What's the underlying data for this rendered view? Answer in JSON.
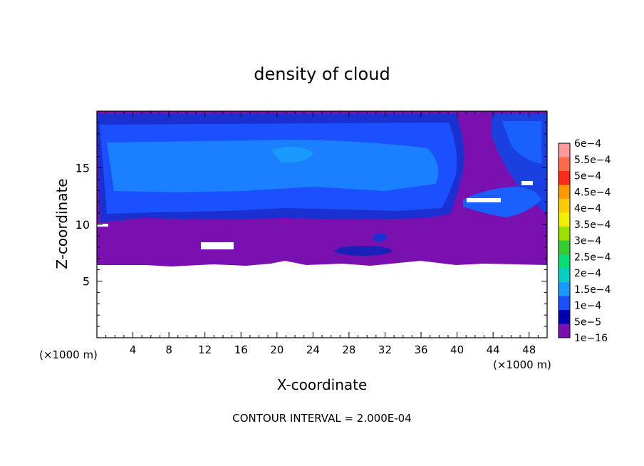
{
  "chart_data": {
    "type": "heatmap",
    "title": "density of cloud",
    "xlabel": "X-coordinate",
    "ylabel": "Z-coordinate",
    "x_unit_left": "(×1000 m)",
    "x_unit_right": "(×1000 m)",
    "xlim": [
      0,
      50
    ],
    "ylim": [
      0,
      20
    ],
    "x_ticks": [
      "4",
      "8",
      "12",
      "16",
      "20",
      "24",
      "28",
      "32",
      "36",
      "40",
      "44",
      "48"
    ],
    "x_tick_values": [
      4,
      8,
      12,
      16,
      20,
      24,
      28,
      32,
      36,
      40,
      44,
      48
    ],
    "y_ticks": [
      "5",
      "10",
      "15"
    ],
    "y_tick_values": [
      5,
      10,
      15
    ],
    "footer": "CONTOUR INTERVAL = 2.000E-04",
    "colorbar": {
      "labels": [
        "6e−4",
        "5.5e−4",
        "5e−4",
        "4.5e−4",
        "4e−4",
        "3.5e−4",
        "3e−4",
        "2.5e−4",
        "2e−4",
        "1.5e−4",
        "1e−4",
        "5e−5",
        "1e−16"
      ],
      "colors": [
        "#ff9a9a",
        "#ff6a4a",
        "#ff2a1a",
        "#ff9a00",
        "#ffcc00",
        "#f0f000",
        "#99e000",
        "#33cc33",
        "#00e070",
        "#00d0c0",
        "#1a9aff",
        "#1a50ff",
        "#0000b4",
        "#7a10b0"
      ]
    },
    "field": {
      "cloud_base_z": 6.4,
      "cloud_top_z": 19.6,
      "purple_layer_top_z": 10.3,
      "dominant_values": [
        "1e-16 to 5e-5 below z=10",
        "1e-4 to 1.5e-4 between z=11 and z=18"
      ]
    }
  }
}
